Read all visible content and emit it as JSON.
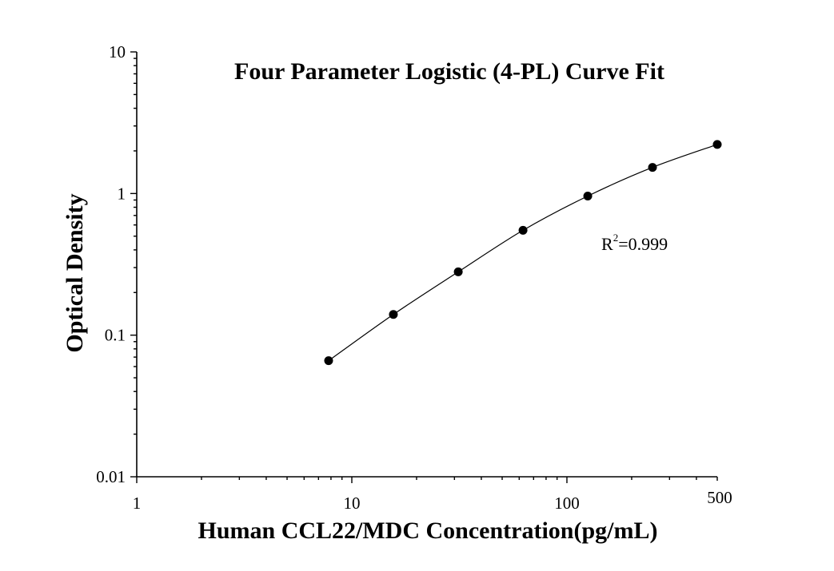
{
  "chart_data": {
    "type": "scatter",
    "title": "Four Parameter Logistic (4-PL) Curve Fit",
    "xlabel": "Human CCL22/MDC Concentration(pg/mL)",
    "ylabel": "Optical Density",
    "xscale": "log",
    "yscale": "log",
    "xlim": [
      1,
      500
    ],
    "ylim": [
      0.01,
      10
    ],
    "xticks": [
      1,
      10,
      100,
      500
    ],
    "xtick_labels": [
      "1",
      "10",
      "100",
      "500"
    ],
    "yticks": [
      0.01,
      0.1,
      1,
      10
    ],
    "ytick_labels": [
      "0.01",
      "0.1",
      "1",
      "10"
    ],
    "grid": false,
    "series": [
      {
        "x": [
          7.8,
          15.6,
          31.25,
          62.5,
          125,
          250,
          500
        ],
        "y": [
          0.066,
          0.14,
          0.28,
          0.55,
          0.96,
          1.53,
          2.22
        ]
      }
    ],
    "fit_curve": "4-PL",
    "annotation": {
      "r_label": "R",
      "r_superscript": "2",
      "r_value": "=0.999"
    }
  }
}
